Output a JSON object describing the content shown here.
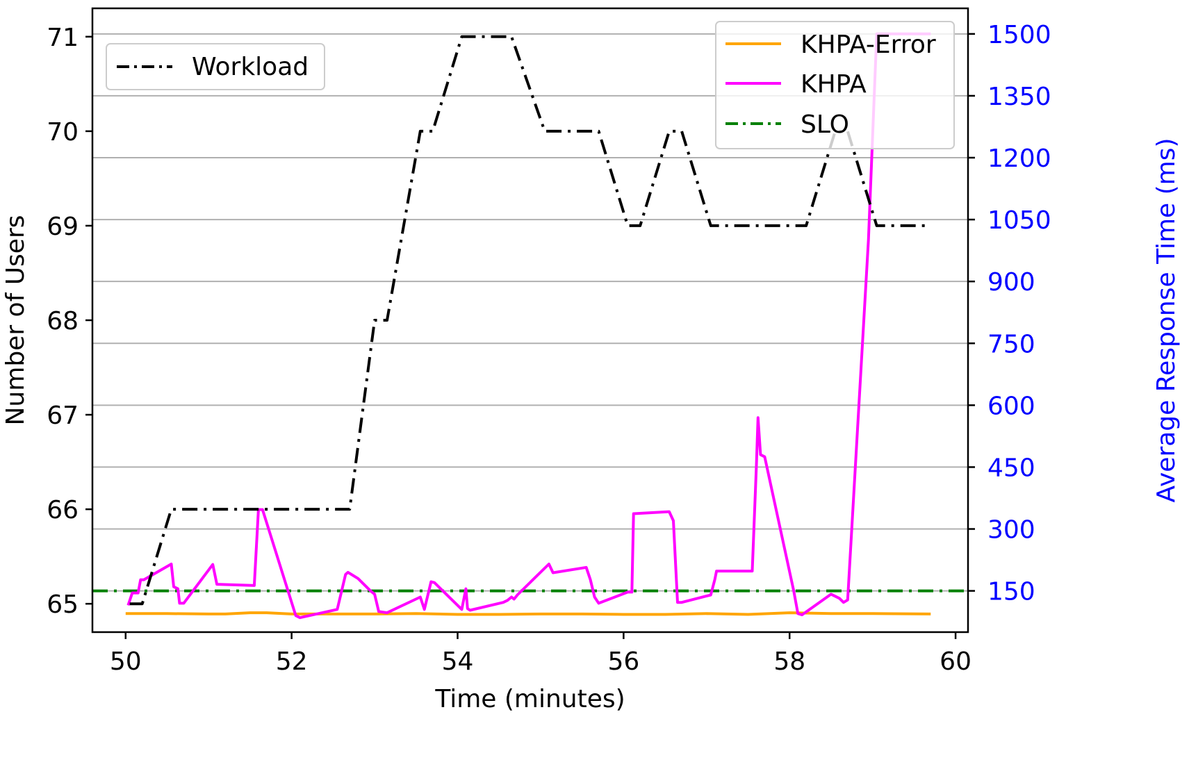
{
  "chart_data": {
    "type": "line",
    "xlabel": "Time (minutes)",
    "ylabel_left": "Number of Users",
    "ylabel_right": "Average Response Time (ms)",
    "xlim": [
      49.6,
      60.15
    ],
    "ylim_left": [
      64.7,
      71.3
    ],
    "ylim_right": [
      50,
      1562
    ],
    "x_ticks": [
      50,
      52,
      54,
      56,
      58,
      60
    ],
    "y_ticks_left": [
      65,
      66,
      67,
      68,
      69,
      70,
      71
    ],
    "y_ticks_right": [
      150,
      300,
      450,
      600,
      750,
      900,
      1050,
      1200,
      1350,
      1500
    ],
    "grid": "horizontal (right axis)",
    "colors": {
      "workload": "#000000",
      "khpa_error": "#FFA500",
      "khpa": "#FF00FF",
      "slo": "#008000",
      "right_axis": "#0000FF"
    },
    "legends": [
      {
        "placement": "upper-left",
        "entries": [
          {
            "label": "Workload",
            "style": "dashdot",
            "color": "#000000"
          }
        ]
      },
      {
        "placement": "upper-right",
        "entries": [
          {
            "label": "KHPA-Error",
            "style": "solid",
            "color": "#FFA500"
          },
          {
            "label": "KHPA",
            "style": "solid",
            "color": "#FF00FF"
          },
          {
            "label": "SLO",
            "style": "dashdot",
            "color": "#008000"
          }
        ]
      }
    ],
    "series": [
      {
        "name": "Workload",
        "axis": "left",
        "style": "dashdot",
        "points": [
          [
            50.05,
            65
          ],
          [
            50.2,
            65
          ],
          [
            50.55,
            66
          ],
          [
            52.7,
            66
          ],
          [
            53.0,
            68
          ],
          [
            53.15,
            68
          ],
          [
            53.55,
            70
          ],
          [
            53.7,
            70
          ],
          [
            54.05,
            71
          ],
          [
            54.65,
            71
          ],
          [
            55.05,
            70
          ],
          [
            55.7,
            70
          ],
          [
            56.05,
            69
          ],
          [
            56.2,
            69
          ],
          [
            56.55,
            70
          ],
          [
            56.7,
            70
          ],
          [
            57.05,
            69
          ],
          [
            58.2,
            69
          ],
          [
            58.55,
            70
          ],
          [
            58.7,
            70
          ],
          [
            59.05,
            69
          ],
          [
            59.7,
            69
          ]
        ]
      },
      {
        "name": "KHPA-Error",
        "axis": "right",
        "style": "solid",
        "points": [
          [
            50.0,
            95
          ],
          [
            50.5,
            95
          ],
          [
            51.0,
            94
          ],
          [
            51.2,
            94
          ],
          [
            51.5,
            97
          ],
          [
            51.7,
            97
          ],
          [
            52.0,
            94
          ],
          [
            52.5,
            94
          ],
          [
            53.0,
            94
          ],
          [
            53.5,
            95
          ],
          [
            54.0,
            93
          ],
          [
            54.5,
            93
          ],
          [
            55.0,
            94
          ],
          [
            55.5,
            94
          ],
          [
            56.0,
            93
          ],
          [
            56.5,
            93
          ],
          [
            57.0,
            95
          ],
          [
            57.5,
            93
          ],
          [
            58.0,
            97
          ],
          [
            58.5,
            95
          ],
          [
            59.0,
            95
          ],
          [
            59.7,
            94
          ]
        ]
      },
      {
        "name": "KHPA",
        "axis": "right",
        "style": "solid",
        "points": [
          [
            50.03,
            115
          ],
          [
            50.08,
            145
          ],
          [
            50.15,
            145
          ],
          [
            50.18,
            177
          ],
          [
            50.22,
            177
          ],
          [
            50.55,
            215
          ],
          [
            50.58,
            160
          ],
          [
            50.63,
            155
          ],
          [
            50.65,
            120
          ],
          [
            50.7,
            120
          ],
          [
            51.05,
            214
          ],
          [
            51.1,
            166
          ],
          [
            51.55,
            163
          ],
          [
            51.6,
            347
          ],
          [
            51.65,
            347
          ],
          [
            52.05,
            90
          ],
          [
            52.1,
            85
          ],
          [
            52.55,
            105
          ],
          [
            52.65,
            190
          ],
          [
            52.68,
            195
          ],
          [
            52.8,
            180
          ],
          [
            52.95,
            150
          ],
          [
            53.0,
            142
          ],
          [
            53.05,
            100
          ],
          [
            53.15,
            97
          ],
          [
            53.55,
            135
          ],
          [
            53.6,
            105
          ],
          [
            53.68,
            172
          ],
          [
            53.72,
            170
          ],
          [
            54.05,
            105
          ],
          [
            54.1,
            155
          ],
          [
            54.12,
            107
          ],
          [
            54.15,
            103
          ],
          [
            54.55,
            122
          ],
          [
            54.6,
            127
          ],
          [
            54.65,
            135
          ],
          [
            54.68,
            130
          ],
          [
            54.72,
            140
          ],
          [
            55.1,
            215
          ],
          [
            55.15,
            194
          ],
          [
            55.55,
            207
          ],
          [
            55.6,
            177
          ],
          [
            55.65,
            135
          ],
          [
            55.7,
            120
          ],
          [
            56.05,
            147
          ],
          [
            56.1,
            147
          ],
          [
            56.12,
            337
          ],
          [
            56.55,
            342
          ],
          [
            56.6,
            320
          ],
          [
            56.65,
            122
          ],
          [
            56.7,
            122
          ],
          [
            57.05,
            140
          ],
          [
            57.1,
            178
          ],
          [
            57.12,
            198
          ],
          [
            57.55,
            198
          ],
          [
            57.6,
            455
          ],
          [
            57.62,
            570
          ],
          [
            57.65,
            480
          ],
          [
            57.7,
            475
          ],
          [
            58.05,
            150
          ],
          [
            58.1,
            95
          ],
          [
            58.15,
            92
          ],
          [
            58.5,
            142
          ],
          [
            58.6,
            132
          ],
          [
            58.65,
            122
          ],
          [
            58.7,
            128
          ],
          [
            58.95,
            1000
          ],
          [
            59.05,
            1500
          ],
          [
            59.7,
            1500
          ]
        ]
      },
      {
        "name": "SLO",
        "axis": "right",
        "style": "dashdot",
        "points": [
          [
            49.6,
            150
          ],
          [
            60.15,
            150
          ]
        ]
      }
    ]
  }
}
